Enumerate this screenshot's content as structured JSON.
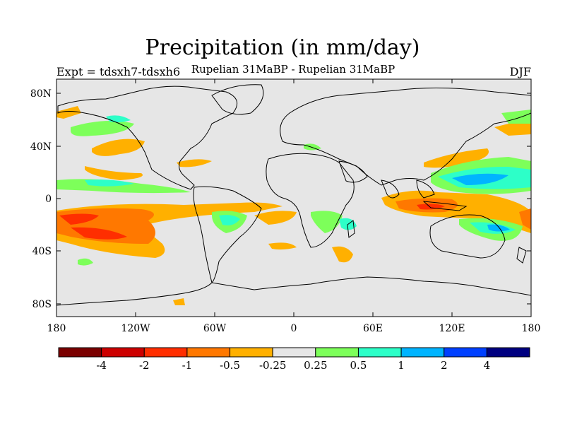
{
  "title": "Precipitation (in mm/day)",
  "subtitle": "Rupelian  31MaBP - Rupelian  31MaBP",
  "experiment": "Expt = tdsxh7-tdsxh6",
  "season": "DJF",
  "map": {
    "lat_labels": [
      "80N",
      "40N",
      "0",
      "40S",
      "80S"
    ],
    "lon_labels": [
      "180",
      "120W",
      "60W",
      "0",
      "60E",
      "120E",
      "180"
    ],
    "background": "#e6e6e6"
  },
  "colorbar": {
    "colors": [
      "#7a0000",
      "#cc0000",
      "#ff2e00",
      "#ff7800",
      "#ffb000",
      "#e6e6e6",
      "#7dff5a",
      "#2dffc8",
      "#00b4ff",
      "#0040ff",
      "#000080"
    ],
    "labels": [
      "-4",
      "-2",
      "-1",
      "-0.5",
      "-0.25",
      "0.25",
      "0.5",
      "1",
      "2",
      "4"
    ]
  }
}
